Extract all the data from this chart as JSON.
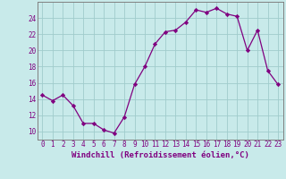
{
  "x": [
    0,
    1,
    2,
    3,
    4,
    5,
    6,
    7,
    8,
    9,
    10,
    11,
    12,
    13,
    14,
    15,
    16,
    17,
    18,
    19,
    20,
    21,
    22,
    23
  ],
  "y": [
    14.5,
    13.8,
    14.5,
    13.2,
    11.0,
    11.0,
    10.2,
    9.8,
    11.8,
    15.8,
    18.0,
    20.8,
    22.3,
    22.5,
    23.5,
    25.0,
    24.7,
    25.2,
    24.5,
    24.2,
    20.0,
    22.5,
    17.5,
    15.8
  ],
  "line_color": "#800080",
  "marker": "D",
  "marker_size": 2.2,
  "bg_color": "#c8eaea",
  "grid_color": "#a0cccc",
  "xlabel": "Windchill (Refroidissement éolien,°C)",
  "xlabel_color": "#800080",
  "tick_color": "#800080",
  "spine_color": "#808080",
  "ylim": [
    9,
    26
  ],
  "yticks": [
    10,
    12,
    14,
    16,
    18,
    20,
    22,
    24
  ],
  "xlim": [
    -0.5,
    23.5
  ],
  "xticks": [
    0,
    1,
    2,
    3,
    4,
    5,
    6,
    7,
    8,
    9,
    10,
    11,
    12,
    13,
    14,
    15,
    16,
    17,
    18,
    19,
    20,
    21,
    22,
    23
  ],
  "tick_fontsize": 5.5,
  "xlabel_fontsize": 6.5
}
